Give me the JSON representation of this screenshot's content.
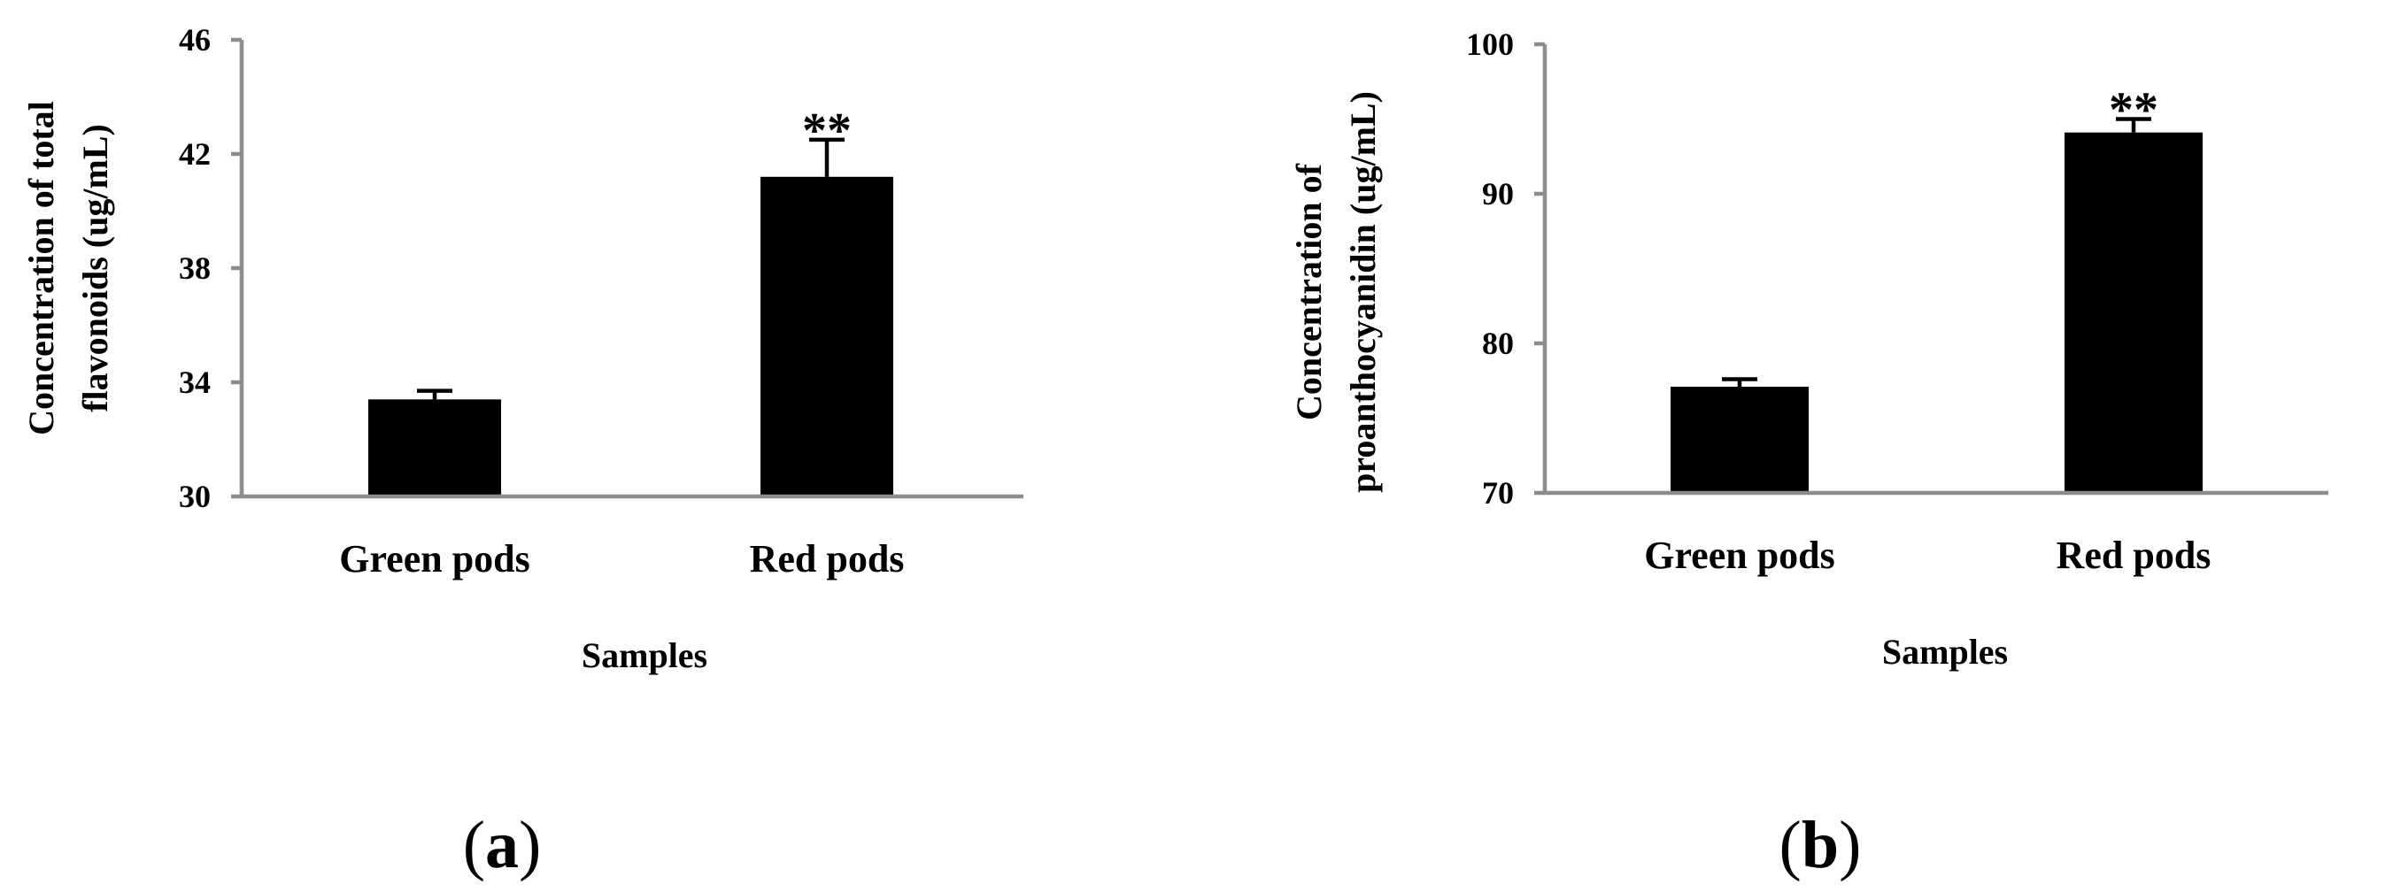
{
  "chart_data": [
    {
      "type": "bar",
      "panel": "a",
      "panel_label": {
        "open": "(",
        "letter": "a",
        "close": ")"
      },
      "categories": [
        "Green pods",
        "Red pods"
      ],
      "values": [
        33.4,
        41.2
      ],
      "errors": [
        0.3,
        1.3
      ],
      "significance": [
        "",
        "**"
      ],
      "xlabel": "Samples",
      "ylabel_lines": [
        "Concentration of total",
        "flavonoids (ug/mL)"
      ],
      "ylim": [
        30,
        46
      ],
      "yticks": [
        30,
        34,
        38,
        42,
        46
      ],
      "grid": false,
      "legend": "none"
    },
    {
      "type": "bar",
      "panel": "b",
      "panel_label": {
        "open": "(",
        "letter": "b",
        "close": ")"
      },
      "categories": [
        "Green pods",
        "Red pods"
      ],
      "values": [
        77.1,
        94.1
      ],
      "errors": [
        0.5,
        0.9
      ],
      "significance": [
        "",
        "**"
      ],
      "xlabel": "Samples",
      "ylabel_lines": [
        "Concentration of",
        "proanthocyanidin (ug/mL)"
      ],
      "ylim": [
        70,
        100
      ],
      "yticks": [
        70,
        80,
        90,
        100
      ],
      "grid": false,
      "legend": "none"
    }
  ]
}
